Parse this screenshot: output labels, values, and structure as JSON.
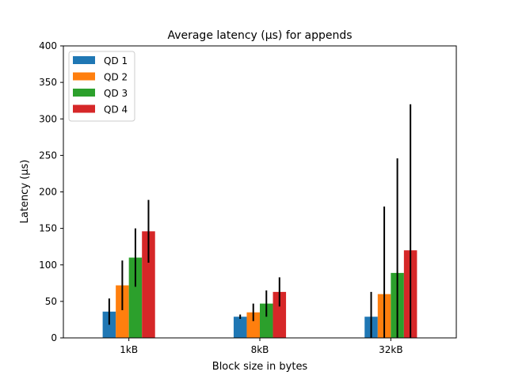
{
  "chart_data": {
    "type": "bar",
    "title": "Average latency (µs) for appends",
    "xlabel": "Block size in bytes",
    "ylabel": "Latency (µs)",
    "ylim": [
      0,
      400
    ],
    "yticks": [
      0,
      50,
      100,
      150,
      200,
      250,
      300,
      350,
      400
    ],
    "categories": [
      "1kB",
      "8kB",
      "32kB"
    ],
    "series": [
      {
        "name": "QD 1",
        "color": "#1f77b4",
        "values": [
          36,
          29,
          29
        ],
        "error": [
          18,
          3,
          34
        ]
      },
      {
        "name": "QD 2",
        "color": "#ff7f0e",
        "values": [
          72,
          35,
          60
        ],
        "error": [
          34,
          12,
          120
        ]
      },
      {
        "name": "QD 3",
        "color": "#2ca02c",
        "values": [
          110,
          47,
          89
        ],
        "error": [
          40,
          18,
          157
        ]
      },
      {
        "name": "QD 4",
        "color": "#d62728",
        "values": [
          146,
          63,
          120
        ],
        "error": [
          43,
          20,
          200
        ]
      }
    ],
    "legend_position": "top-left",
    "grid": false
  }
}
